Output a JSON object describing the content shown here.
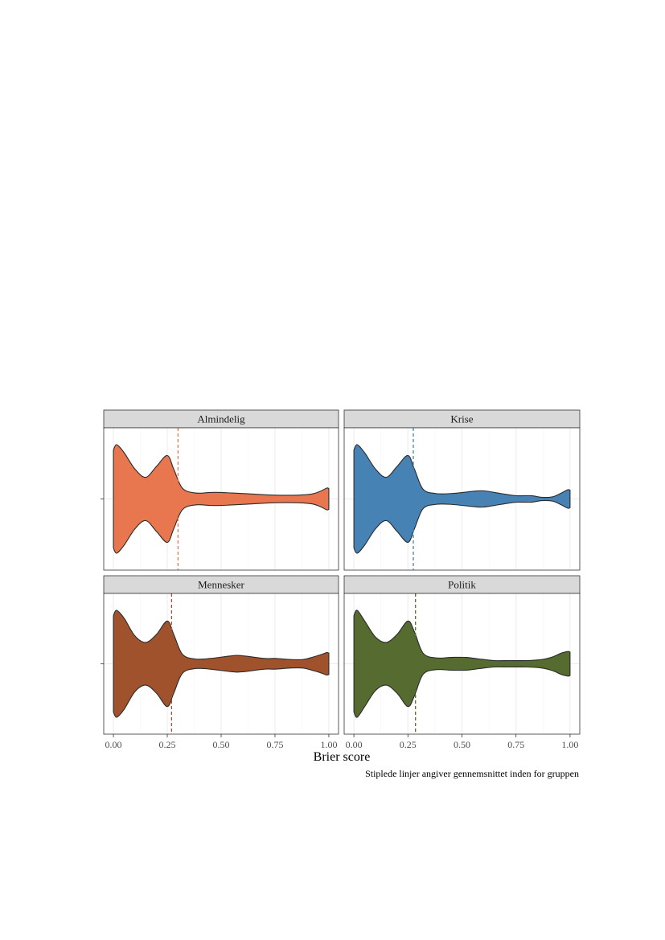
{
  "chart_data": {
    "type": "violin",
    "xlabel": "Brier score",
    "ylabel": "",
    "xlim": [
      0,
      1
    ],
    "x_ticks": [
      0,
      0.25,
      0.5,
      0.75,
      1
    ],
    "x_tick_labels": [
      "0.00",
      "0.25",
      "0.50",
      "0.75",
      "1.00"
    ],
    "caption": "Stiplede linjer angiver gennemsnittet inden for gruppen",
    "grid": true,
    "layout": "2x2 facets",
    "facets": [
      {
        "name": "Almindelig",
        "fill": "#E8774F",
        "mean_line_color": "#E8774F",
        "mean": 0.3,
        "density_x": [
          0,
          0.015,
          0.05,
          0.1,
          0.15,
          0.2,
          0.25,
          0.28,
          0.32,
          0.38,
          0.45,
          0.5,
          0.55,
          0.65,
          0.75,
          0.85,
          0.92,
          0.96,
          0.99,
          1.0
        ],
        "density_w": [
          0.9,
          1.0,
          0.85,
          0.55,
          0.4,
          0.6,
          0.8,
          0.55,
          0.2,
          0.11,
          0.12,
          0.12,
          0.11,
          0.09,
          0.07,
          0.07,
          0.09,
          0.14,
          0.2,
          0.19
        ]
      },
      {
        "name": "Krise",
        "fill": "#4682B4",
        "mean_line_color": "#4682B4",
        "mean": 0.275,
        "density_x": [
          0,
          0.015,
          0.05,
          0.1,
          0.15,
          0.2,
          0.25,
          0.28,
          0.32,
          0.38,
          0.45,
          0.55,
          0.6,
          0.68,
          0.75,
          0.82,
          0.87,
          0.92,
          0.96,
          0.99,
          1.0
        ],
        "density_w": [
          0.9,
          1.0,
          0.85,
          0.55,
          0.4,
          0.6,
          0.8,
          0.55,
          0.18,
          0.1,
          0.1,
          0.14,
          0.15,
          0.1,
          0.06,
          0.06,
          0.03,
          0.04,
          0.11,
          0.17,
          0.16
        ]
      },
      {
        "name": "Mennesker",
        "fill": "#A0522D",
        "mean_line_color": "#A0522D",
        "mean": 0.27,
        "density_x": [
          0,
          0.015,
          0.05,
          0.1,
          0.15,
          0.2,
          0.25,
          0.28,
          0.32,
          0.38,
          0.45,
          0.55,
          0.6,
          0.7,
          0.75,
          0.82,
          0.88,
          0.93,
          0.97,
          0.99,
          1.0
        ],
        "density_w": [
          0.9,
          1.0,
          0.85,
          0.52,
          0.4,
          0.55,
          0.8,
          0.55,
          0.18,
          0.09,
          0.1,
          0.15,
          0.15,
          0.1,
          0.1,
          0.08,
          0.08,
          0.13,
          0.18,
          0.21,
          0.2
        ]
      },
      {
        "name": "Politik",
        "fill": "#556B2F",
        "mean_line_color": "#556B2F",
        "mean": 0.285,
        "density_x": [
          0,
          0.015,
          0.05,
          0.1,
          0.15,
          0.2,
          0.25,
          0.28,
          0.32,
          0.38,
          0.45,
          0.52,
          0.58,
          0.65,
          0.72,
          0.8,
          0.87,
          0.92,
          0.96,
          0.99,
          1.0
        ],
        "density_w": [
          0.9,
          1.0,
          0.8,
          0.5,
          0.4,
          0.55,
          0.8,
          0.6,
          0.2,
          0.11,
          0.12,
          0.12,
          0.09,
          0.06,
          0.06,
          0.06,
          0.08,
          0.13,
          0.2,
          0.23,
          0.22
        ]
      }
    ]
  },
  "colors": {
    "strip_fill": "#D9D9D9",
    "panel_border": "#333333",
    "grid_major": "#EBEBEB",
    "grid_minor": "#F5F5F5",
    "outline": "#2b2b2b"
  }
}
